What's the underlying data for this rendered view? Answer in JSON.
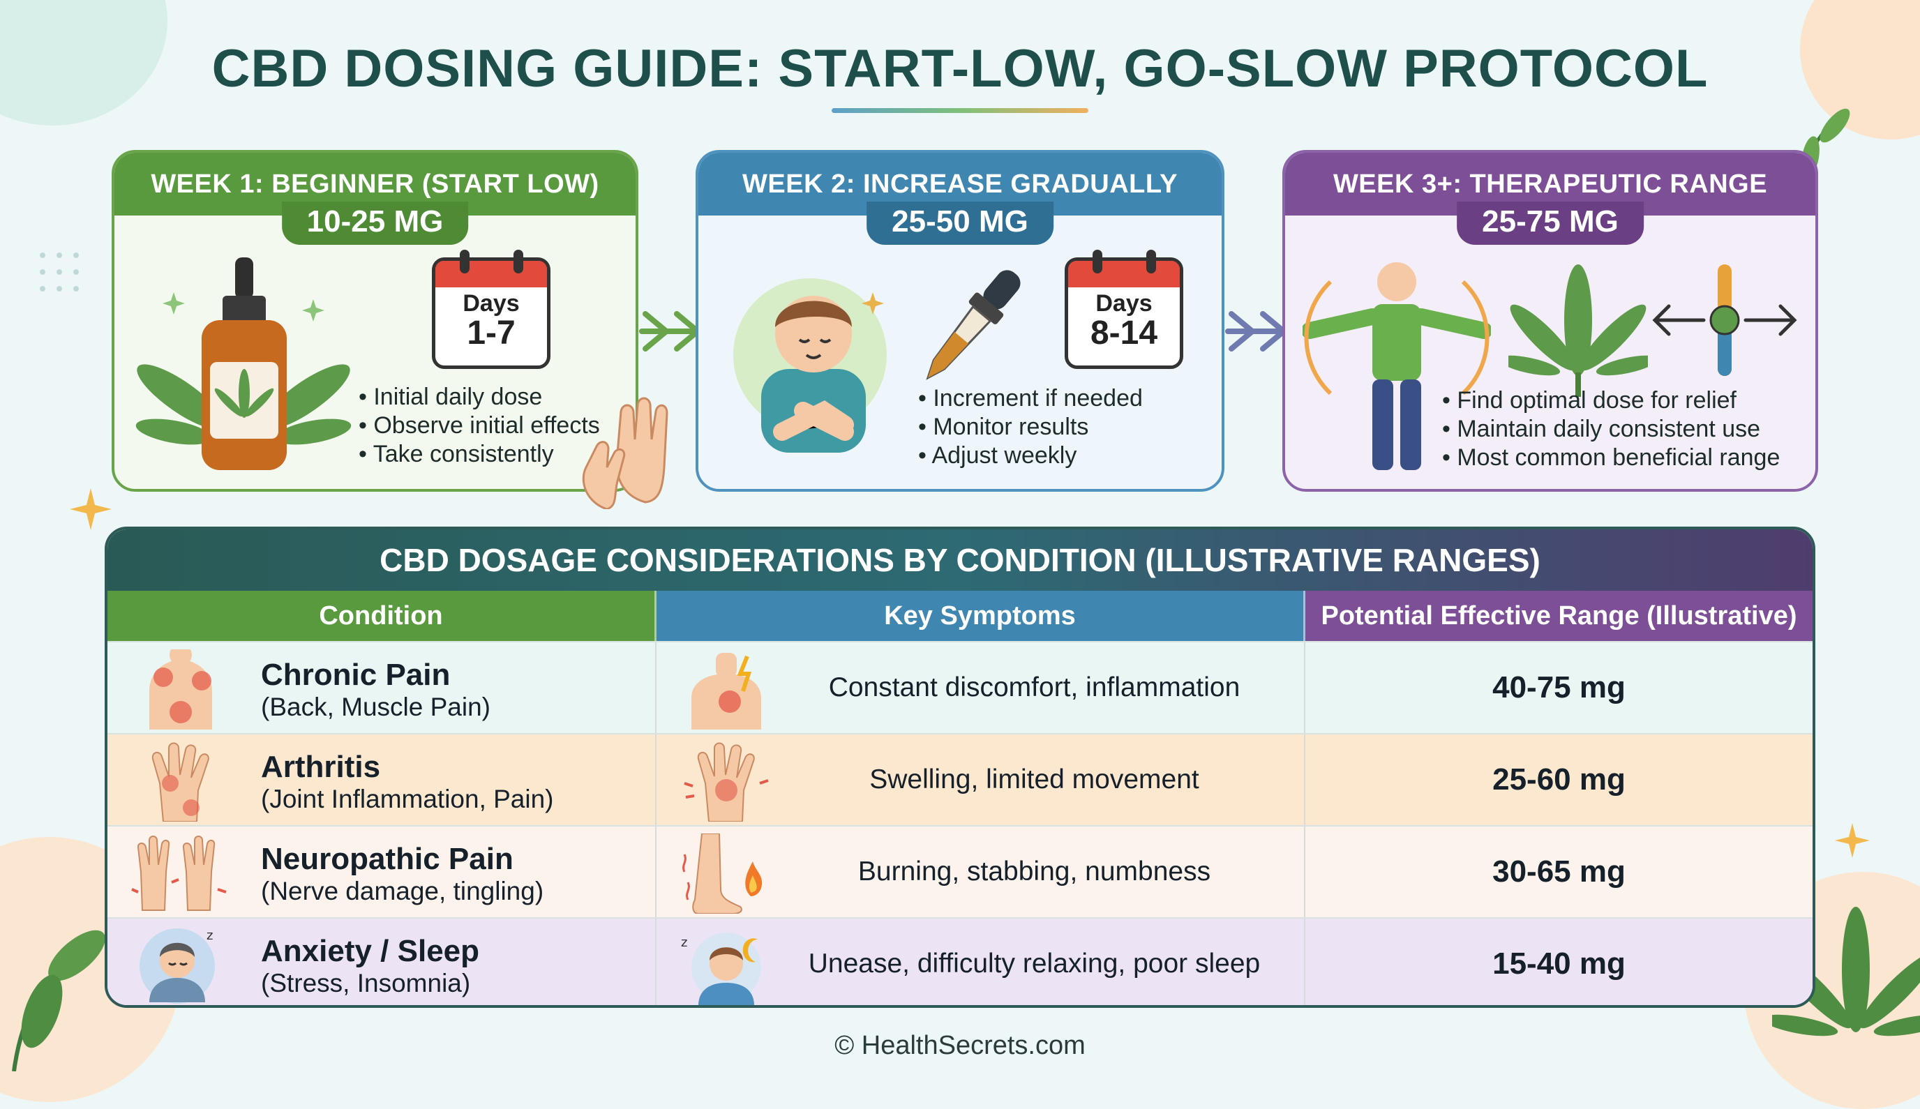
{
  "title": "CBD DOSING GUIDE: START-LOW, GO-SLOW PROTOCOL",
  "weeks": [
    {
      "header": "WEEK 1:  BEGINNER (START LOW)",
      "dose": "10-25 MG",
      "calendar_label": "Days",
      "calendar_days": "1-7",
      "bullets": [
        "Initial daily dose",
        "Observe initial effects",
        "Take consistently"
      ],
      "color": "#5a9a3e"
    },
    {
      "header": "WEEK 2: INCREASE GRADUALLY",
      "dose": "25-50 MG",
      "calendar_label": "Days",
      "calendar_days": "8-14",
      "bullets": [
        "Increment if needed",
        "Monitor results",
        "Adjust weekly"
      ],
      "color": "#3f86b0"
    },
    {
      "header": "WEEK 3+: THERAPEUTIC RANGE",
      "dose": "25-75 MG",
      "bullets": [
        "Find optimal dose for relief",
        "Maintain daily consistent use",
        "Most common beneficial range"
      ],
      "color": "#7d4f97"
    }
  ],
  "table": {
    "title": "CBD DOSAGE CONSIDERATIONS BY CONDITION (ILLUSTRATIVE RANGES)",
    "columns": [
      "Condition",
      "Key Symptoms",
      "Potential Effective Range (Illustrative)"
    ],
    "rows": [
      {
        "condition": "Chronic Pain",
        "detail": "(Back, Muscle Pain)",
        "symptoms": "Constant discomfort, inflammation",
        "range": "40-75 mg",
        "bg": "#eaf6f4"
      },
      {
        "condition": "Arthritis",
        "detail": "(Joint Inflammation, Pain)",
        "symptoms": "Swelling, limited movement",
        "range": "25-60 mg",
        "bg": "#fbe8cf"
      },
      {
        "condition": "Neuropathic Pain",
        "detail": "(Nerve damage, tingling)",
        "symptoms": "Burning, stabbing, numbness",
        "range": "30-65 mg",
        "bg": "#fbf3ec"
      },
      {
        "condition": "Anxiety / Sleep",
        "detail": "(Stress, Insomnia)",
        "symptoms": "Unease, difficulty relaxing, poor sleep",
        "range": "15-40 mg",
        "bg": "#ece4f4"
      }
    ]
  },
  "footer": "© HealthSecrets.com"
}
